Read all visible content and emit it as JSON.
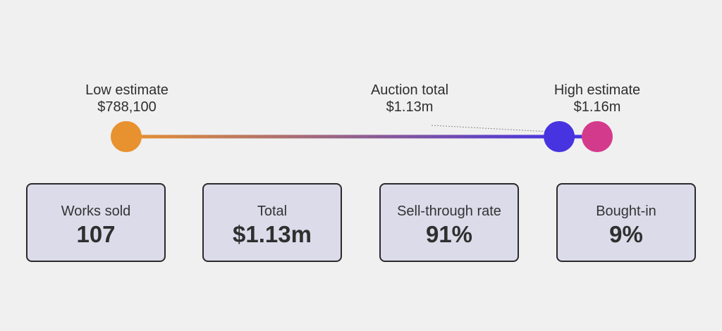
{
  "chart_data": {
    "type": "range",
    "low_estimate": {
      "label": "Low estimate",
      "value": 788100,
      "display": "$788,100",
      "color": "#e8912f"
    },
    "auction_total": {
      "label": "Auction total",
      "value": 1130000,
      "display": "$1.13m",
      "color": "#4733e0"
    },
    "high_estimate": {
      "label": "High estimate",
      "value": 1160000,
      "display": "$1.16m",
      "color": "#d43a8c"
    },
    "gradient": [
      "#e8912f",
      "#4733e0"
    ]
  },
  "stats": [
    {
      "label": "Works sold",
      "value": "107"
    },
    {
      "label": "Total",
      "value": "$1.13m"
    },
    {
      "label": "Sell-through rate",
      "value": "91%"
    },
    {
      "label": "Bought-in",
      "value": "9%"
    }
  ]
}
